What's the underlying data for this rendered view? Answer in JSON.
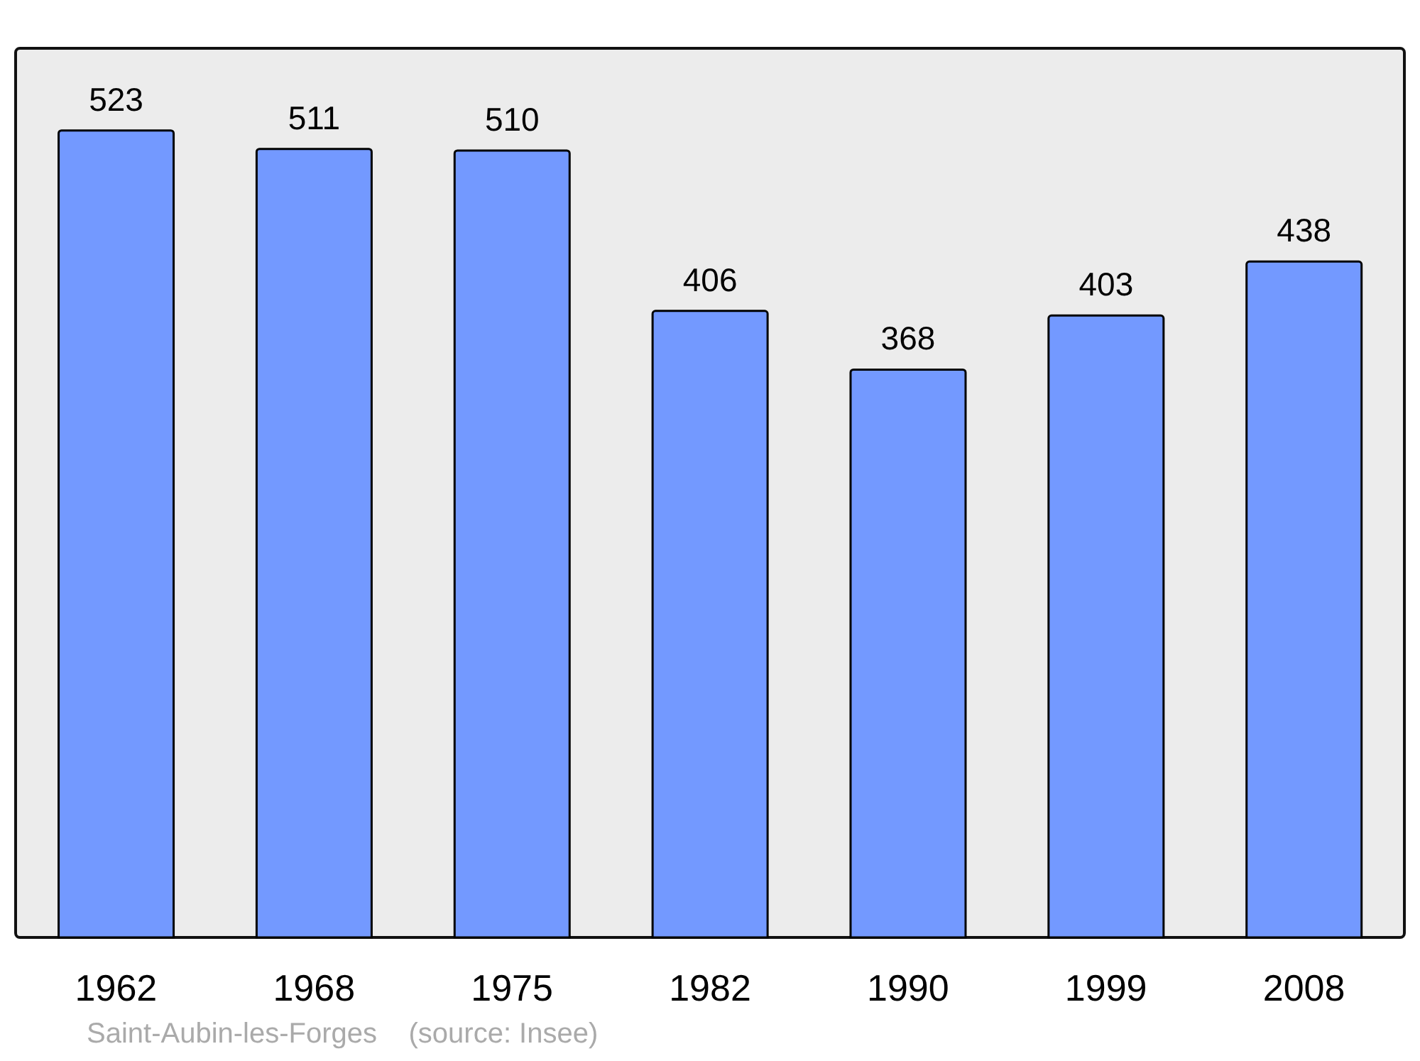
{
  "chart_data": {
    "type": "bar",
    "categories": [
      "1962",
      "1968",
      "1975",
      "1982",
      "1990",
      "1999",
      "2008"
    ],
    "values": [
      523,
      511,
      510,
      406,
      368,
      403,
      438
    ],
    "color": "#7399ff",
    "data_labels": true,
    "grid": false,
    "annotations": [
      "Saint-Aubin-les-Forges    (source: Insee)"
    ]
  }
}
